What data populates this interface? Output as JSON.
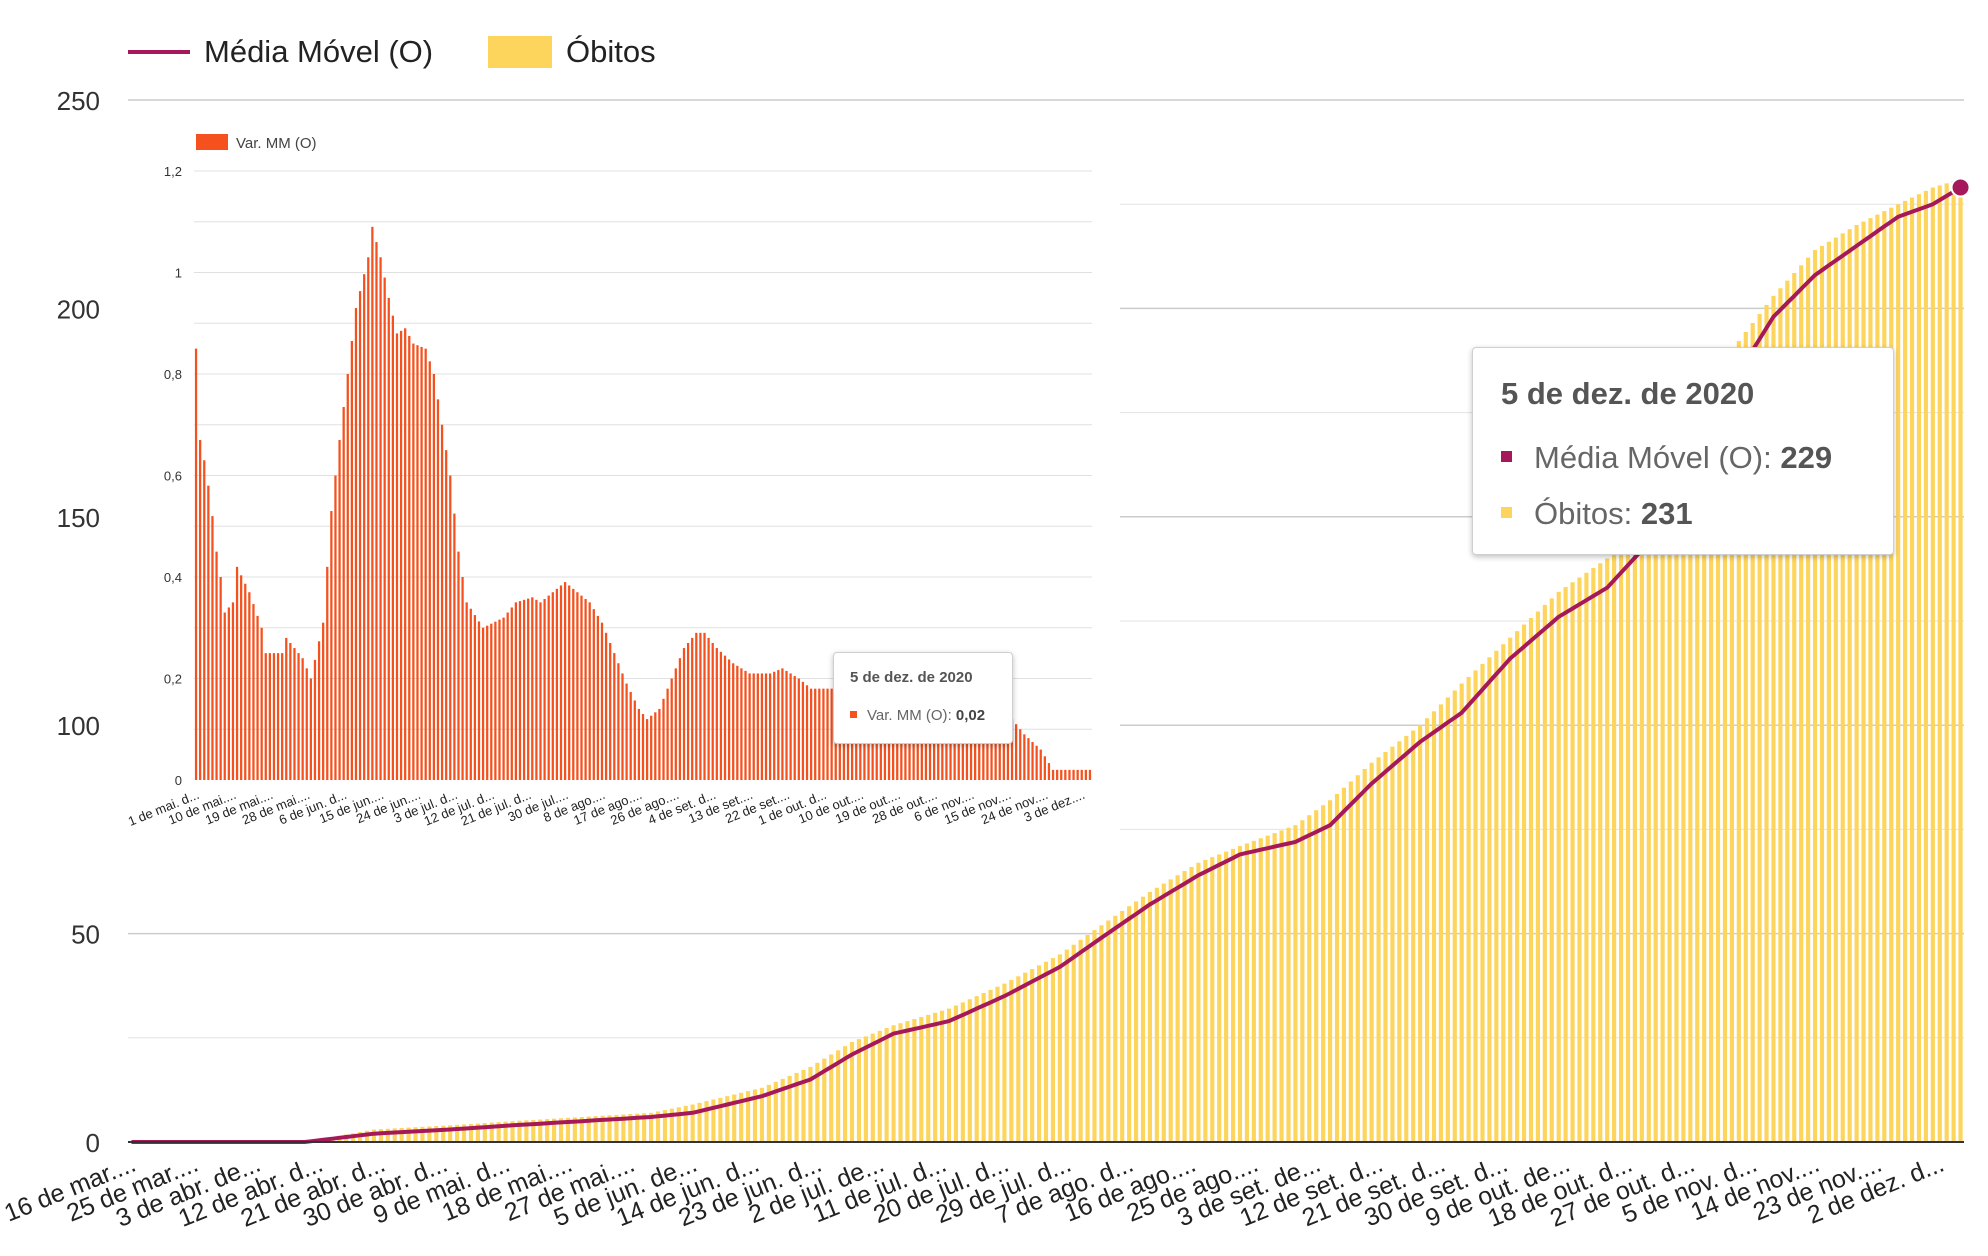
{
  "chart_data": [
    {
      "type": "bar+line",
      "legend": [
        {
          "name": "Média Móvel (O)",
          "color": "#a5195a",
          "kind": "line"
        },
        {
          "name": "Óbitos",
          "color": "#fdd55c",
          "kind": "bar"
        }
      ],
      "legend_position": "top-left",
      "ylim": [
        0,
        250
      ],
      "yticks": [
        0,
        50,
        100,
        150,
        200,
        250
      ],
      "grid": true,
      "x_start": "2020-03-16",
      "x_end": "2020-12-05",
      "xtick_labels": [
        "16 de mar....",
        "25 de mar....",
        "3 de abr. de...",
        "12 de abr. d...",
        "21 de abr. d...",
        "30 de abr. d...",
        "9 de mai. d...",
        "18 de mai....",
        "27 de mai....",
        "5 de jun. de...",
        "14 de jun. d...",
        "23 de jun. d...",
        "2 de jul. de...",
        "11 de jul. d...",
        "20 de jul. d...",
        "29 de jul. d...",
        "7 de ago. d...",
        "16 de ago....",
        "25 de ago....",
        "3 de set. de...",
        "12 de set. d...",
        "21 de set. d...",
        "30 de set. d...",
        "9 de out. de...",
        "18 de out. d...",
        "27 de out. d...",
        "5 de nov. d...",
        "14 de nov....",
        "23 de nov....",
        "2 de dez. d..."
      ],
      "moving_average_anchors": [
        [
          "2020-03-16",
          0
        ],
        [
          "2020-04-10",
          0
        ],
        [
          "2020-04-20",
          2
        ],
        [
          "2020-05-01",
          3
        ],
        [
          "2020-05-10",
          4
        ],
        [
          "2020-05-20",
          5
        ],
        [
          "2020-05-30",
          6
        ],
        [
          "2020-06-05",
          7
        ],
        [
          "2020-06-15",
          11
        ],
        [
          "2020-06-22",
          15
        ],
        [
          "2020-06-28",
          21
        ],
        [
          "2020-07-04",
          26
        ],
        [
          "2020-07-12",
          29
        ],
        [
          "2020-07-20",
          35
        ],
        [
          "2020-07-28",
          42
        ],
        [
          "2020-08-03",
          49
        ],
        [
          "2020-08-10",
          57
        ],
        [
          "2020-08-17",
          64
        ],
        [
          "2020-08-23",
          69
        ],
        [
          "2020-08-31",
          72
        ],
        [
          "2020-09-05",
          76
        ],
        [
          "2020-09-11",
          86
        ],
        [
          "2020-09-18",
          96
        ],
        [
          "2020-09-24",
          103
        ],
        [
          "2020-10-01",
          116
        ],
        [
          "2020-10-08",
          126
        ],
        [
          "2020-10-15",
          133
        ],
        [
          "2020-10-20",
          142
        ],
        [
          "2020-10-26",
          158
        ],
        [
          "2020-11-02",
          182
        ],
        [
          "2020-11-08",
          198
        ],
        [
          "2020-11-14",
          208
        ],
        [
          "2020-11-20",
          215
        ],
        [
          "2020-11-26",
          222
        ],
        [
          "2020-12-01",
          225
        ],
        [
          "2020-12-05",
          229
        ]
      ],
      "obitos_anchors": [
        [
          "2020-03-16",
          0
        ],
        [
          "2020-04-10",
          0
        ],
        [
          "2020-04-20",
          3
        ],
        [
          "2020-05-01",
          4
        ],
        [
          "2020-05-10",
          5
        ],
        [
          "2020-05-20",
          6
        ],
        [
          "2020-05-30",
          7
        ],
        [
          "2020-06-05",
          9
        ],
        [
          "2020-06-15",
          13
        ],
        [
          "2020-06-22",
          18
        ],
        [
          "2020-06-28",
          24
        ],
        [
          "2020-07-04",
          28
        ],
        [
          "2020-07-12",
          32
        ],
        [
          "2020-07-20",
          38
        ],
        [
          "2020-07-28",
          45
        ],
        [
          "2020-08-03",
          52
        ],
        [
          "2020-08-10",
          60
        ],
        [
          "2020-08-17",
          67
        ],
        [
          "2020-08-23",
          71
        ],
        [
          "2020-08-31",
          76
        ],
        [
          "2020-09-05",
          82
        ],
        [
          "2020-09-11",
          91
        ],
        [
          "2020-09-18",
          100
        ],
        [
          "2020-09-24",
          110
        ],
        [
          "2020-10-01",
          121
        ],
        [
          "2020-10-08",
          132
        ],
        [
          "2020-10-15",
          140
        ],
        [
          "2020-10-20",
          150
        ],
        [
          "2020-10-26",
          168
        ],
        [
          "2020-11-02",
          190
        ],
        [
          "2020-11-08",
          203
        ],
        [
          "2020-11-14",
          214
        ],
        [
          "2020-11-20",
          220
        ],
        [
          "2020-11-26",
          225
        ],
        [
          "2020-12-01",
          229
        ],
        [
          "2020-12-05",
          231
        ]
      ],
      "tooltip": {
        "date": "5 de dez. de 2020",
        "media_movel_label": "Média Móvel (O)",
        "media_movel_value": "229",
        "obitos_label": "Óbitos",
        "obitos_value": "231"
      }
    },
    {
      "type": "bar",
      "legend": [
        {
          "name": "Var. MM (O)",
          "color": "#f4511e"
        }
      ],
      "legend_position": "top-left",
      "ylim": [
        0,
        1.2
      ],
      "ytick_labels": [
        "0",
        "0,2",
        "0,4",
        "0,6",
        "0,8",
        "1",
        "1,2"
      ],
      "grid": true,
      "x_start": "2020-05-01",
      "x_end": "2020-12-05",
      "xtick_labels": [
        "1 de mai. d...",
        "10 de mai....",
        "19 de mai....",
        "28 de mai....",
        "6 de jun. d...",
        "15 de jun....",
        "24 de jun....",
        "3 de jul. d...",
        "12 de jul. d...",
        "21 de jul. d...",
        "30 de jul....",
        "8 de ago....",
        "17 de ago....",
        "26 de ago....",
        "4 de set. d...",
        "13 de set....",
        "22 de set....",
        "1 de out. d...",
        "10 de out....",
        "19 de out....",
        "28 de out....",
        "6 de nov....",
        "15 de nov....",
        "24 de nov....",
        "3 de dez...."
      ],
      "var_mm_anchors": [
        [
          "2020-05-01",
          0.85
        ],
        [
          "2020-05-02",
          0.67
        ],
        [
          "2020-05-03",
          0.63
        ],
        [
          "2020-05-04",
          0.58
        ],
        [
          "2020-05-05",
          0.52
        ],
        [
          "2020-05-06",
          0.45
        ],
        [
          "2020-05-07",
          0.4
        ],
        [
          "2020-05-08",
          0.33
        ],
        [
          "2020-05-10",
          0.35
        ],
        [
          "2020-05-11",
          0.42
        ],
        [
          "2020-05-14",
          0.37
        ],
        [
          "2020-05-17",
          0.3
        ],
        [
          "2020-05-18",
          0.25
        ],
        [
          "2020-05-22",
          0.25
        ],
        [
          "2020-05-23",
          0.28
        ],
        [
          "2020-05-27",
          0.24
        ],
        [
          "2020-05-29",
          0.2
        ],
        [
          "2020-06-01",
          0.31
        ],
        [
          "2020-06-03",
          0.53
        ],
        [
          "2020-06-05",
          0.67
        ],
        [
          "2020-06-07",
          0.8
        ],
        [
          "2020-06-09",
          0.93
        ],
        [
          "2020-06-12",
          1.03
        ],
        [
          "2020-06-13",
          1.09
        ],
        [
          "2020-06-15",
          1.03
        ],
        [
          "2020-06-17",
          0.95
        ],
        [
          "2020-06-19",
          0.88
        ],
        [
          "2020-06-21",
          0.89
        ],
        [
          "2020-06-23",
          0.86
        ],
        [
          "2020-06-26",
          0.85
        ],
        [
          "2020-06-28",
          0.8
        ],
        [
          "2020-06-30",
          0.7
        ],
        [
          "2020-07-02",
          0.6
        ],
        [
          "2020-07-04",
          0.45
        ],
        [
          "2020-07-06",
          0.35
        ],
        [
          "2020-07-10",
          0.3
        ],
        [
          "2020-07-15",
          0.32
        ],
        [
          "2020-07-18",
          0.35
        ],
        [
          "2020-07-22",
          0.36
        ],
        [
          "2020-07-24",
          0.35
        ],
        [
          "2020-07-27",
          0.37
        ],
        [
          "2020-07-30",
          0.39
        ],
        [
          "2020-08-02",
          0.37
        ],
        [
          "2020-08-05",
          0.35
        ],
        [
          "2020-08-08",
          0.31
        ],
        [
          "2020-08-11",
          0.25
        ],
        [
          "2020-08-14",
          0.19
        ],
        [
          "2020-08-17",
          0.14
        ],
        [
          "2020-08-19",
          0.12
        ],
        [
          "2020-08-22",
          0.14
        ],
        [
          "2020-08-25",
          0.2
        ],
        [
          "2020-08-28",
          0.26
        ],
        [
          "2020-08-31",
          0.29
        ],
        [
          "2020-09-02",
          0.29
        ],
        [
          "2020-09-05",
          0.26
        ],
        [
          "2020-09-09",
          0.23
        ],
        [
          "2020-09-13",
          0.21
        ],
        [
          "2020-09-18",
          0.21
        ],
        [
          "2020-09-21",
          0.22
        ],
        [
          "2020-09-25",
          0.2
        ],
        [
          "2020-09-28",
          0.18
        ],
        [
          "2020-10-03",
          0.18
        ],
        [
          "2020-10-08",
          0.19
        ],
        [
          "2020-10-20",
          0.17
        ],
        [
          "2020-11-01",
          0.16
        ],
        [
          "2020-11-10",
          0.15
        ],
        [
          "2020-11-15",
          0.13
        ],
        [
          "2020-11-19",
          0.09
        ],
        [
          "2020-11-23",
          0.06
        ],
        [
          "2020-11-26",
          0.02
        ],
        [
          "2020-12-03",
          0.02
        ],
        [
          "2020-12-05",
          0.02
        ]
      ],
      "tooltip": {
        "date": "5 de dez. de 2020",
        "label": "Var. MM (O)",
        "value": "0,02"
      }
    }
  ]
}
